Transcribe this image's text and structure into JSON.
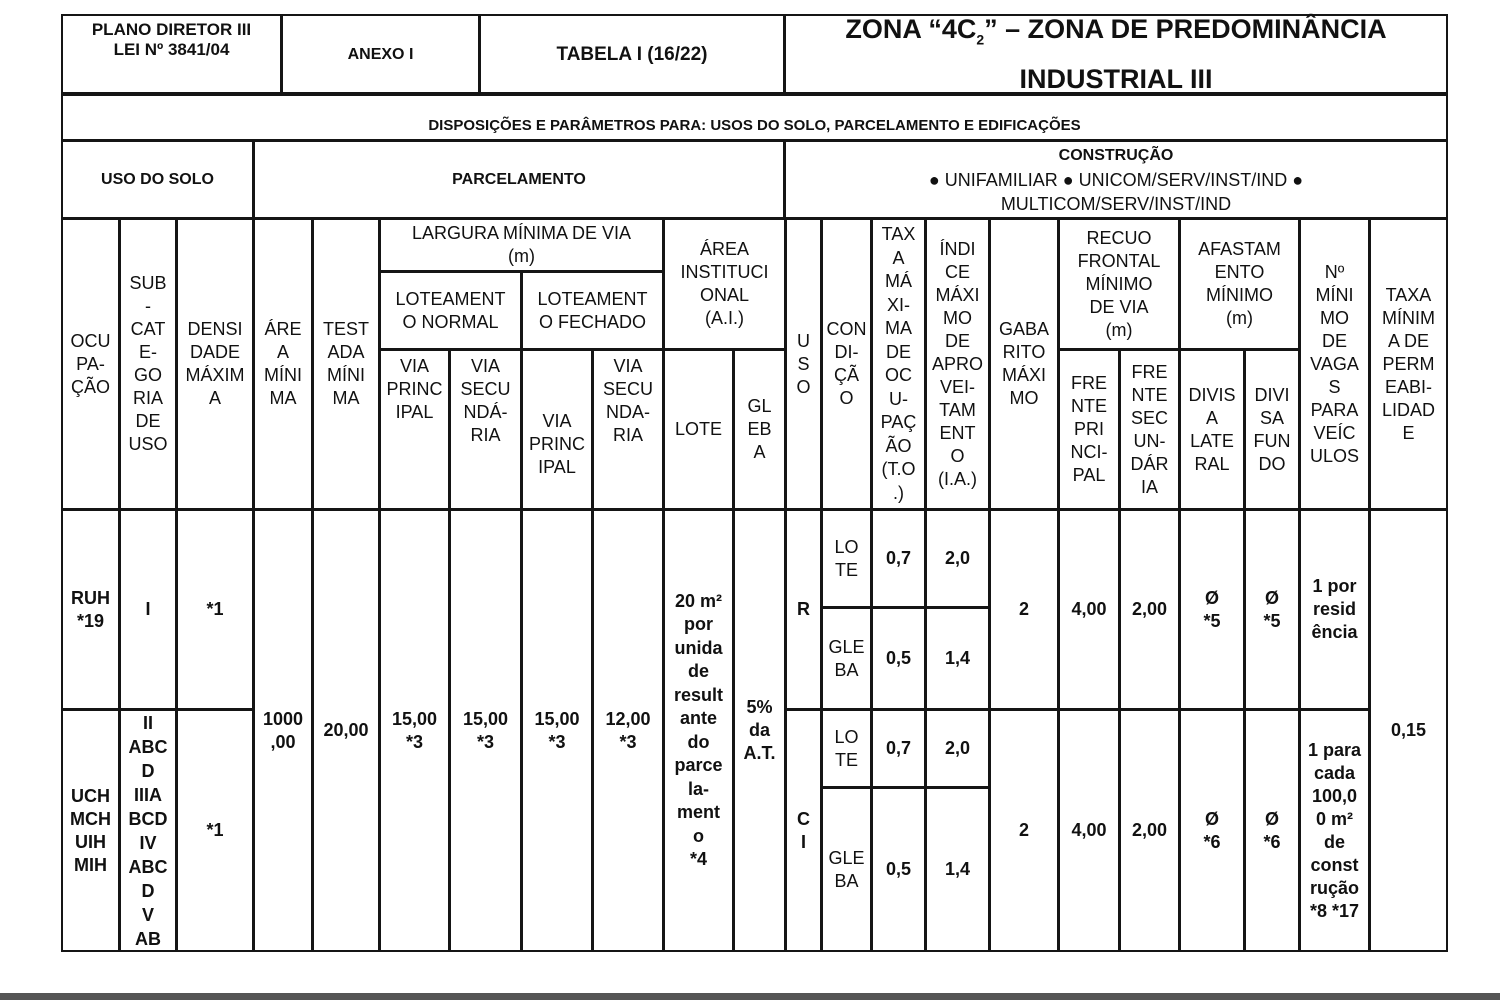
{
  "header": {
    "plano": "PLANO DIRETOR III\nLEI Nº 3841/04",
    "anexo": "ANEXO I",
    "tabela": "TABELA I (16/22)",
    "zona_a": "ZONA “4C",
    "zona_sub": "2",
    "zona_b": "” – ZONA DE PREDOMINÂNCIA",
    "zona_c": "INDUSTRIAL III",
    "disposicoes": "DISPOSIÇÕES E PARÂMETROS PARA: USOS DO SOLO, PARCELAMENTO E EDIFICAÇÕES",
    "uso_do_solo": "USO DO SOLO",
    "parcelamento": "PARCELAMENTO",
    "construcao_title": "CONSTRUÇÃO",
    "construcao_body": "● UNIFAMILIAR ● UNICOM/SERV/INST/IND ●\nMULTICOM/SERV/INST/IND"
  },
  "columns": {
    "ocupacao": "OCU\nPA-\nÇÃO",
    "subcategoria": "SUB\n-\nCAT\nE-\nGO\nRIA\nDE\nUSO",
    "densidade": "DENSI\nDADE\nMÁXIM\nA",
    "area_minima": "ÁRE\nA\nMÍNI\nMA",
    "testada": "TEST\nADA\nMÍNI\nMA",
    "largura": "LARGURA MÍNIMA DE VIA\n(m)",
    "lot_normal": "LOTEAMENT\nO NORMAL",
    "lot_fechado": "LOTEAMENT\nO FECHADO",
    "via_principal": "VIA\nPRINC\nIPAL",
    "via_secundaria_n": "VIA\nSECU\nNDÁ-\nRIA",
    "via_secundaria_f": "VIA\nSECU\nNDA-\nRIA",
    "area_inst": "ÁREA\nINSTITUCI\nONAL\n(A.I.)",
    "lote": "LOTE",
    "gleba": "GL\nEB\nA",
    "uso": "U\nS\nO",
    "condicao": "CON\nDI-\nÇÃ\nO",
    "taxa_ocupacao": "TAX\nA\nMÁ\nXI-\nMA\nDE\nOC\nU-\nPAÇ\nÃO\n(T.O\n.)",
    "indice": "ÍNDI\nCE\nMÁXI\nMO\nDE\nAPRO\nVEI-\nTAM\nENT\nO\n(I.A.)",
    "gabarito": "GABA\nRITO\nMÁXI\nMO",
    "recuo": "RECUO\nFRONTAL\nMÍNIMO\nDE VIA\n(m)",
    "frente_principal": "FRE\nNTE\nPRI\nNCI-\nPAL",
    "frente_secundaria": "FRE\nNTE\nSEC\nUN-\nDÁR\nIA",
    "afastamento": "AFASTAM\nENTO\nMÍNIMO\n(m)",
    "divisa_lateral": "DIVIS\nA\nLATE\nRAL",
    "divisa_fundo": "DIVI\nSA\nFUN\nDO",
    "vagas": "Nº\nMÍNI\nMO\nDE\nVAGA\nS\nPARA\nVEÍC\nULOS",
    "permeabilidade": "TAXA\nMÍNIM\nA DE\nPERM\nEABI-\nLIDAD\nE"
  },
  "shared": {
    "area_minima": "1000\n,00",
    "testada": "20,00",
    "ln_principal": "15,00\n*3",
    "ln_secundaria": "15,00\n*3",
    "lf_principal": "15,00\n*3",
    "lf_secundaria": "12,00\n*3",
    "ai_lote": "20 m²\npor\nunida\nde\nresult\nante\ndo\nparce\nla-\nment\no\n*4",
    "ai_gleba": "5%\nda\nA.T.",
    "permeabilidade": "0,15"
  },
  "rows": [
    {
      "ocupacao": "RUH\n*19",
      "subcategoria": "I",
      "densidade": "*1",
      "uso": "R",
      "lote": {
        "condicao": "LO\nTE",
        "to": "0,7",
        "ia": "2,0"
      },
      "gleba": {
        "condicao": "GLE\nBA",
        "to": "0,5",
        "ia": "1,4"
      },
      "gabarito": "2",
      "frente_principal": "4,00",
      "frente_secundaria": "2,00",
      "divisa_lateral": "Ø\n*5",
      "divisa_fundo": "Ø\n*5",
      "vagas": "1 por\nresid\nência"
    },
    {
      "ocupacao": "UCH\nMCH\nUIH\nMIH",
      "subcategoria": "II\nABC\nD\nIIIA\nBCD\nIV\nABC\nD\nV\nAB",
      "densidade": "*1",
      "uso": "C\nI",
      "lote": {
        "condicao": "LO\nTE",
        "to": "0,7",
        "ia": "2,0"
      },
      "gleba": {
        "condicao": "GLE\nBA",
        "to": "0,5",
        "ia": "1,4"
      },
      "gabarito": "2",
      "frente_principal": "4,00",
      "frente_secundaria": "2,00",
      "divisa_lateral": "Ø\n*6",
      "divisa_fundo": "Ø\n*6",
      "vagas": "1 para\ncada\n100,0\n0 m²\nde\nconst\nrução\n*8 *17"
    }
  ]
}
